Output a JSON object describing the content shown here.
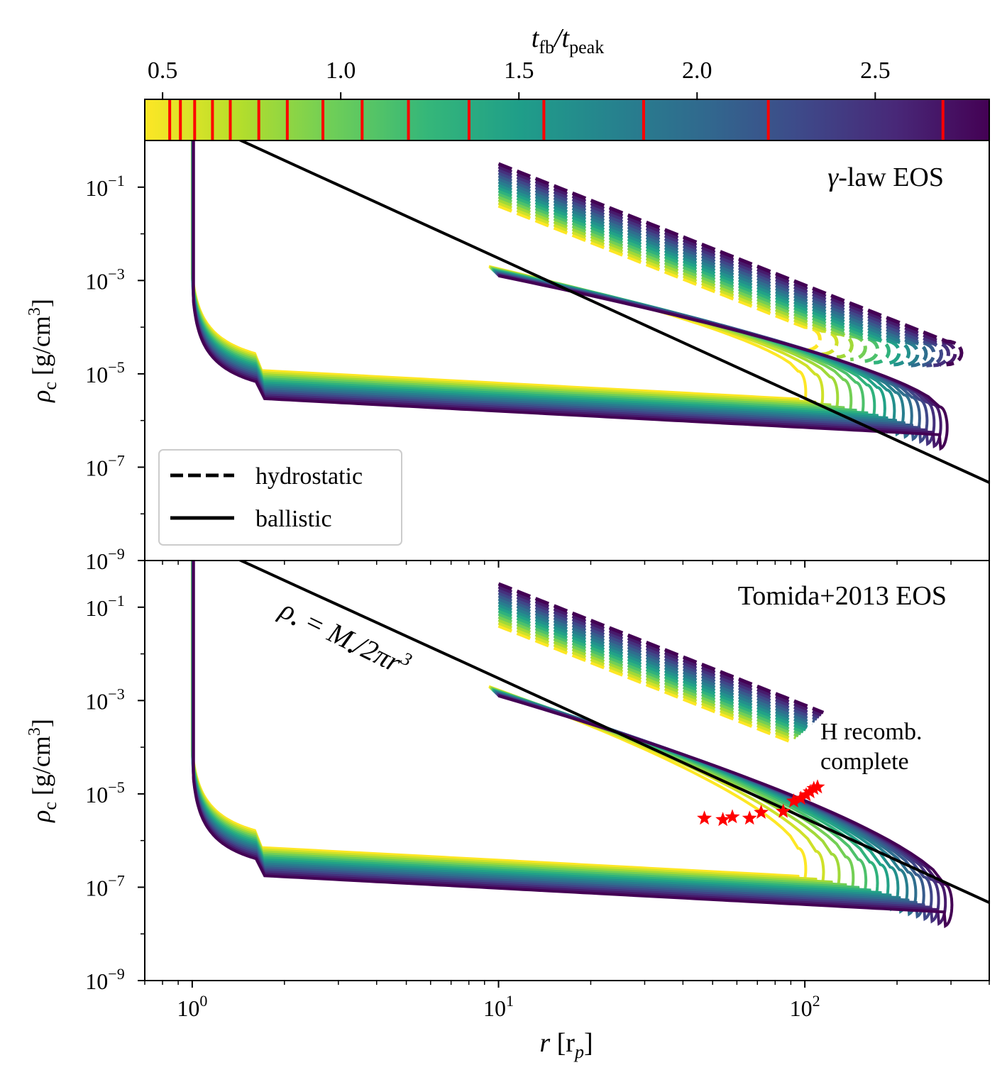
{
  "chart_data": {
    "type": "line",
    "colorbar": {
      "label": "t_fb / t_peak",
      "label_main": "t",
      "label_sub1": "fb",
      "label_slash": "/t",
      "label_sub2": "peak",
      "range": [
        0.45,
        2.82
      ],
      "ticks": [
        0.5,
        1.0,
        1.5,
        2.0,
        2.5
      ],
      "tick_labels": [
        "0.5",
        "1.0",
        "1.5",
        "2.0",
        "2.5"
      ],
      "markers": [
        0.52,
        0.55,
        0.59,
        0.64,
        0.69,
        0.77,
        0.85,
        0.95,
        1.06,
        1.19,
        1.36,
        1.57,
        1.85,
        2.2,
        2.69
      ],
      "marker_color": "#ff0000",
      "colormap": [
        "#fde725",
        "#b5de2b",
        "#6ece58",
        "#35b779",
        "#1f9e89",
        "#26828e",
        "#31688e",
        "#3e4989",
        "#482878",
        "#440154"
      ]
    },
    "x_axis": {
      "label_main": "r",
      "label_unit_open": " [r",
      "label_unit_sub": "p",
      "label_unit_close": "]",
      "scale": "log",
      "range": [
        0.7,
        400
      ],
      "major_ticks": [
        1,
        10,
        100
      ],
      "tick_base": "10",
      "tick_exponents": [
        "0",
        "1",
        "2"
      ]
    },
    "y_axis": {
      "label_main": "ρ",
      "label_sub": "c",
      "label_unit": " [g/cm",
      "label_sup": "3",
      "label_close": "]",
      "scale": "log",
      "range": [
        1e-09,
        1
      ],
      "major_ticks": [
        1e-09,
        1e-07,
        1e-05,
        0.001,
        0.1
      ],
      "tick_base": "10",
      "tick_exponents": [
        "−9",
        "−7",
        "−5",
        "−3",
        "−1"
      ]
    },
    "panels": [
      {
        "title": "γ-law EOS",
        "title_symbol": "γ",
        "title_rest": "-law EOS",
        "series_count": 15,
        "ballistic_base": 2e-06,
        "hydrostatic_range": [
          10,
          250
        ]
      },
      {
        "title": "Tomida+2013 EOS",
        "series_count": 15,
        "ballistic_base": 1.2e-07,
        "hydrostatic_range": [
          10,
          110
        ]
      }
    ],
    "reference_line": {
      "label": "ρ• = M•/2πr³",
      "label_rho": "ρ",
      "label_eq": " = M",
      "label_tail": "/2πr",
      "label_exp": "3",
      "label_bullet": "•",
      "value_at_r1": 3.0,
      "slope": -3,
      "color": "#000000"
    },
    "legend": {
      "location": "lower-left",
      "entries": [
        {
          "label": "hydrostatic",
          "style": "dashed"
        },
        {
          "label": "ballistic",
          "style": "solid"
        }
      ]
    },
    "annotation": {
      "line1": "H recomb.",
      "line2": "complete",
      "panel": 2
    },
    "recombination_points": [
      {
        "r": 47,
        "rho": 3e-06
      },
      {
        "r": 54,
        "rho": 2.8e-06
      },
      {
        "r": 58,
        "rho": 3.2e-06
      },
      {
        "r": 66,
        "rho": 3e-06
      },
      {
        "r": 72,
        "rho": 4e-06
      },
      {
        "r": 85,
        "rho": 4.2e-06
      },
      {
        "r": 92,
        "rho": 7e-06
      },
      {
        "r": 97,
        "rho": 8e-06
      },
      {
        "r": 101,
        "rho": 9.5e-06
      },
      {
        "r": 104,
        "rho": 1.1e-05
      },
      {
        "r": 107,
        "rho": 1.3e-05
      },
      {
        "r": 110,
        "rho": 1.4e-05
      }
    ]
  }
}
